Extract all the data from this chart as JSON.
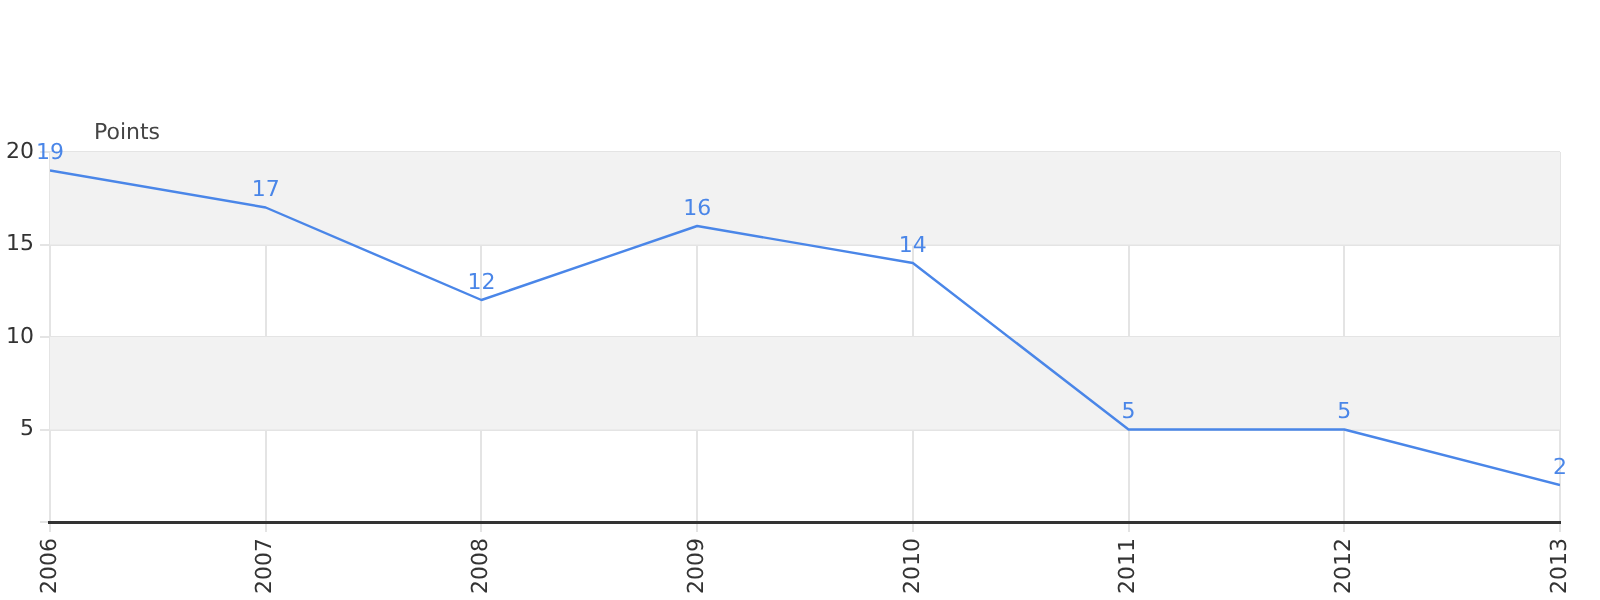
{
  "chart_data": {
    "type": "line",
    "ylabel": "Points",
    "x": [
      2006,
      2007,
      2008,
      2009,
      2010,
      2011,
      2012,
      2013
    ],
    "series": [
      {
        "color": "#4a86e8",
        "values": [
          19,
          17,
          12,
          16,
          14,
          5,
          5,
          2
        ]
      }
    ],
    "xlim": [
      2006,
      2013
    ],
    "xticks": [
      2006,
      2007,
      2008,
      2009,
      2010,
      2011,
      2012,
      2013
    ],
    "ylim": [
      0,
      20
    ],
    "yticks": [
      {
        "value": 0,
        "label": null
      },
      5,
      10,
      15,
      20
    ],
    "bands": [
      {
        "axis": "y",
        "from": 5,
        "to": 10,
        "color": "#f2f2f2"
      },
      {
        "axis": "y",
        "from": 15,
        "to": 20,
        "color": "#f2f2f2"
      }
    ],
    "grid": true,
    "data_labels": true,
    "marker": "none",
    "line_style": "solid",
    "legend": false
  }
}
